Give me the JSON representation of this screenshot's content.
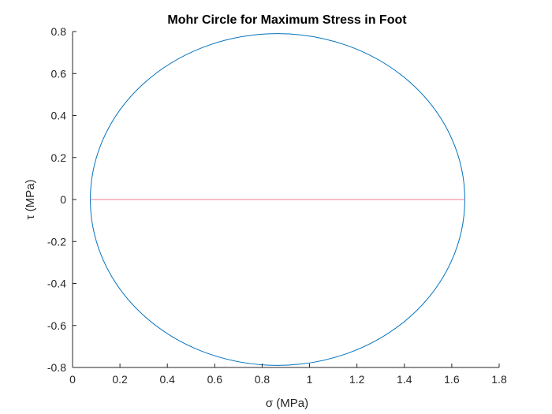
{
  "chart_data": {
    "type": "line",
    "title": "Mohr Circle for Maximum Stress in Foot",
    "xlabel": "σ (MPa)",
    "ylabel": "τ (MPa)",
    "xlim": [
      0,
      1.8
    ],
    "ylim": [
      -0.8,
      0.8
    ],
    "xticks": [
      0,
      0.2,
      0.4,
      0.6,
      0.8,
      1,
      1.2,
      1.4,
      1.6,
      1.8
    ],
    "xtick_labels": [
      "0",
      "0.2",
      "0.4",
      "0.6",
      "0.8",
      "1",
      "1.2",
      "1.4",
      "1.6",
      "1.8"
    ],
    "yticks": [
      -0.8,
      -0.6,
      -0.4,
      -0.2,
      0,
      0.2,
      0.4,
      0.6,
      0.8
    ],
    "ytick_labels": [
      "-0.8",
      "-0.6",
      "-0.4",
      "-0.2",
      "0",
      "0.2",
      "0.4",
      "0.6",
      "0.8"
    ],
    "grid": false,
    "series": [
      {
        "kind": "circle",
        "center": [
          0.865,
          0
        ],
        "radius": 0.79,
        "color": "#0072BD"
      },
      {
        "kind": "segment",
        "x": [
          0.075,
          1.655
        ],
        "y": [
          0,
          0
        ],
        "color": "#E8808C"
      }
    ]
  }
}
